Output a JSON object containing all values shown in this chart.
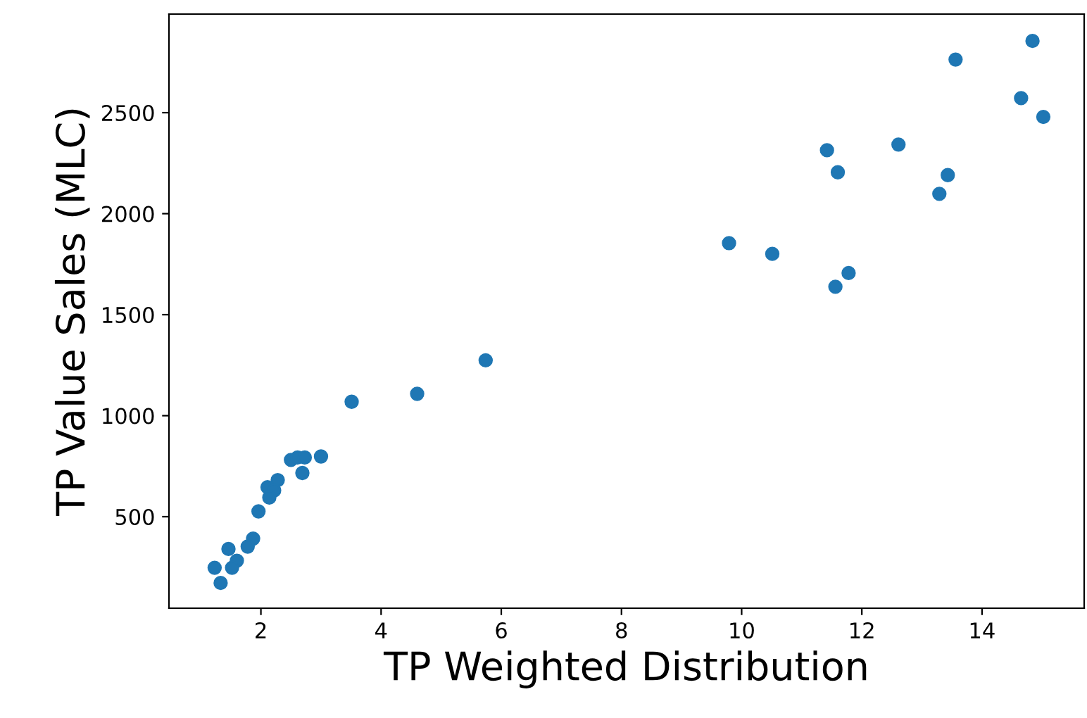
{
  "chart_data": {
    "type": "scatter",
    "xlabel": "TP Weighted Distribution",
    "ylabel": "TP Value Sales (MLC)",
    "x": [
      9.79,
      10.51,
      11.42,
      11.6,
      11.56,
      11.78,
      12.61,
      13.56,
      13.29,
      13.43,
      14.65,
      14.84,
      15.02,
      5.74,
      4.6,
      3.51,
      3.0,
      2.69,
      2.5,
      2.61,
      2.73,
      2.28,
      2.11,
      2.22,
      2.14,
      1.96,
      1.87,
      1.78,
      1.46,
      1.6,
      1.52,
      1.23,
      1.33
    ],
    "series": [
      {
        "color": "#1f77b4",
        "values": [
          1854,
          1801,
          2314,
          2205,
          1638,
          1706,
          2342,
          2763,
          2098,
          2191,
          2572,
          2855,
          2479,
          1274,
          1108,
          1069,
          798,
          716,
          781,
          793,
          793,
          681,
          646,
          630,
          595,
          526,
          391,
          352,
          340,
          282,
          247,
          247,
          172
        ]
      }
    ],
    "xlim": [
      0.47,
      15.7
    ],
    "ylim": [
      47,
      2988
    ],
    "xticks": [
      2,
      4,
      6,
      8,
      10,
      12,
      14
    ],
    "yticks": [
      500,
      1000,
      1500,
      2000,
      2500
    ],
    "marker": "circle",
    "grid": false,
    "legend": false
  }
}
